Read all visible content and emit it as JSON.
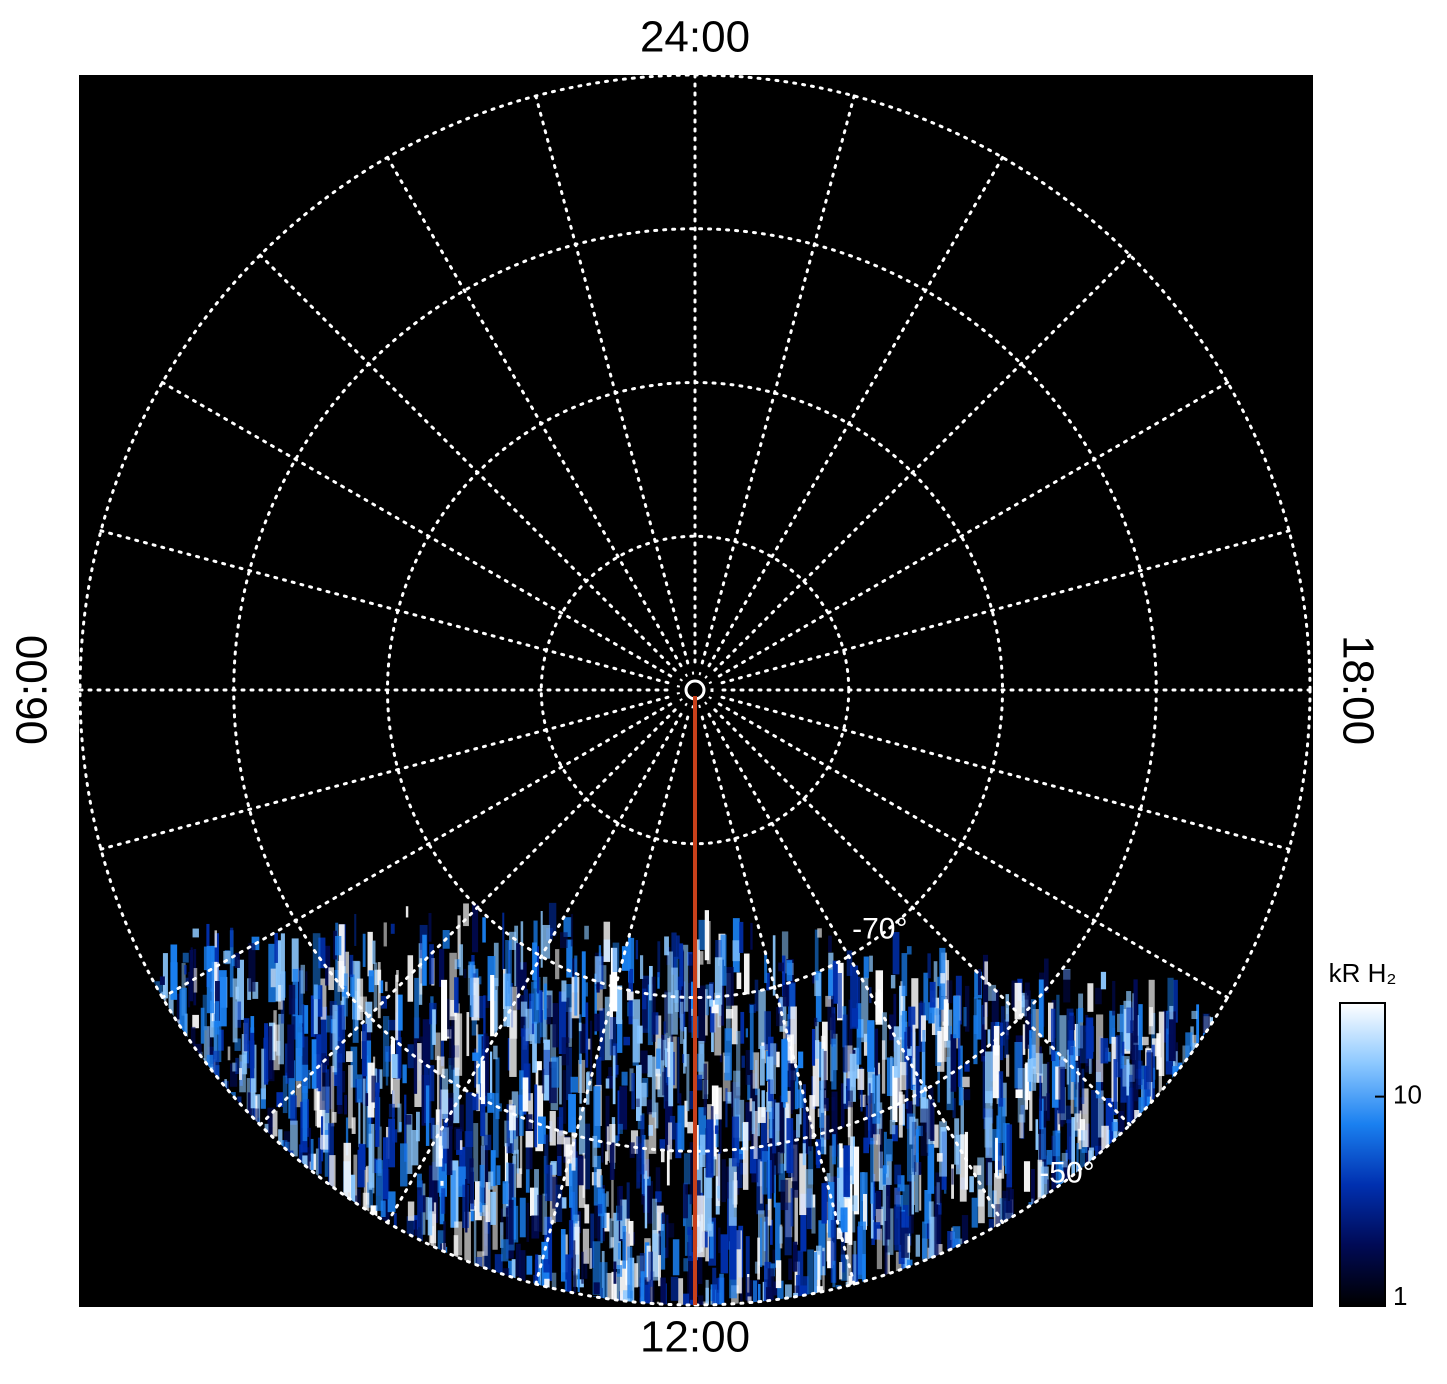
{
  "chart_data": {
    "type": "polar-map",
    "lt_labels": [
      {
        "value": 24,
        "label": "24:00"
      },
      {
        "value": 6,
        "label": "06:00"
      },
      {
        "value": 12,
        "label": "12:00"
      },
      {
        "value": 18,
        "label": "18:00"
      }
    ],
    "lt_grid_step": 1,
    "rlim": [
      -90,
      -50
    ],
    "lat_grid": [
      -80,
      -70,
      -60,
      -50
    ],
    "lat_labels": [
      {
        "value": -70,
        "label": "-70°"
      },
      {
        "value": -50,
        "label": "-50°"
      }
    ],
    "lat_label_lt": 14.5,
    "highlight_lt": 12,
    "highlight_color": "#c8401a",
    "colorbar": {
      "label": "kR H₂",
      "scale": "log",
      "lim": [
        1,
        28
      ],
      "ticks": [
        1,
        10
      ],
      "colors": [
        "#000000",
        "#000a55",
        "#0030b0",
        "#1a80f0",
        "#8cc8ff",
        "#ffffff"
      ]
    }
  }
}
